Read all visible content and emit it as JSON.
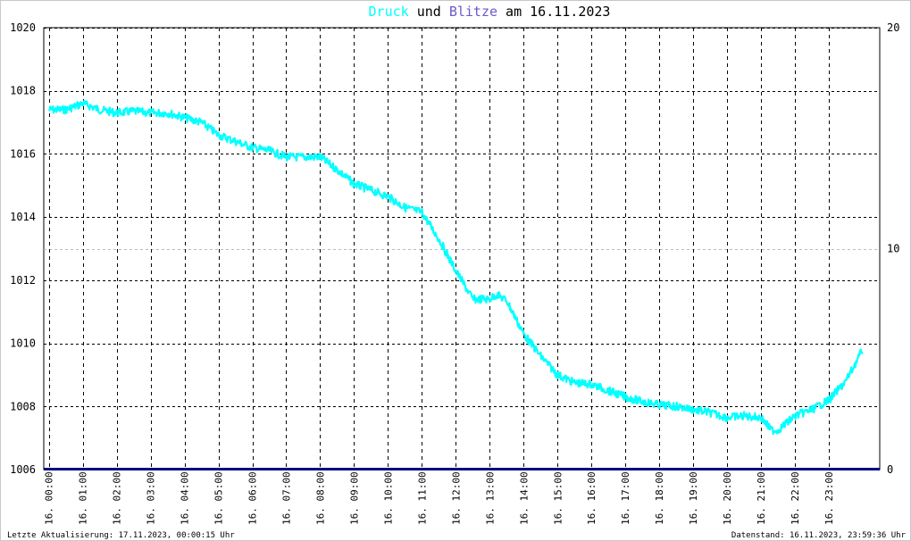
{
  "title": {
    "druck": "Druck",
    "und": " und ",
    "blitze": "Blitze",
    "rest": " am 16.11.2023"
  },
  "colors": {
    "druck": "#00ffff",
    "blitze": "#6a5acd",
    "baseline": "#000080",
    "grid": "#000000",
    "frame": "#c8c8c8"
  },
  "footer": {
    "left": "Letzte Aktualisierung: 17.11.2023, 00:00:15 Uhr",
    "right": "Datenstand: 16.11.2023, 23:59:36 Uhr"
  },
  "chart_data": {
    "type": "line",
    "x_tick_labels": [
      "16. 00:00",
      "16. 01:00",
      "16. 02:00",
      "16. 03:00",
      "16. 04:00",
      "16. 05:00",
      "16. 06:00",
      "16. 07:00",
      "16. 08:00",
      "16. 09:00",
      "16. 10:00",
      "16. 11:00",
      "16. 12:00",
      "16. 13:00",
      "16. 14:00",
      "16. 15:00",
      "16. 16:00",
      "16. 17:00",
      "16. 18:00",
      "16. 19:00",
      "16. 20:00",
      "16. 21:00",
      "16. 22:00",
      "16. 23:00"
    ],
    "y_left": {
      "ylim": [
        1006,
        1020
      ],
      "ticks": [
        1006,
        1008,
        1010,
        1012,
        1014,
        1016,
        1018,
        1020
      ]
    },
    "y_right": {
      "ylim": [
        0,
        20
      ],
      "ticks": [
        0,
        10,
        20
      ]
    },
    "xlim_hours": [
      -0.15,
      24.5
    ],
    "grid": true,
    "series": [
      {
        "name": "Druck",
        "axis": "left",
        "x_hours": [
          0,
          0.5,
          1.0,
          1.5,
          2.0,
          2.5,
          3.0,
          3.5,
          4.0,
          4.5,
          5.0,
          5.5,
          6.0,
          6.5,
          7.0,
          7.5,
          8.0,
          8.5,
          9.0,
          9.5,
          10.0,
          10.5,
          11.0,
          11.5,
          12.0,
          12.5,
          13.0,
          13.2,
          13.5,
          14.0,
          14.5,
          15.0,
          15.5,
          16.0,
          16.5,
          17.0,
          17.5,
          18.0,
          18.5,
          19.0,
          19.5,
          20.0,
          20.5,
          21.0,
          21.3,
          21.5,
          22.0,
          22.5,
          23.0,
          23.5,
          24.0
        ],
        "values": [
          1017.4,
          1017.4,
          1017.6,
          1017.4,
          1017.3,
          1017.35,
          1017.3,
          1017.3,
          1017.15,
          1017.0,
          1016.6,
          1016.4,
          1016.2,
          1016.1,
          1015.9,
          1015.9,
          1015.9,
          1015.5,
          1015.05,
          1014.85,
          1014.65,
          1014.3,
          1014.15,
          1013.3,
          1012.3,
          1011.4,
          1011.4,
          1011.55,
          1011.35,
          1010.3,
          1009.6,
          1009.0,
          1008.75,
          1008.7,
          1008.5,
          1008.3,
          1008.15,
          1008.05,
          1008.0,
          1007.9,
          1007.8,
          1007.65,
          1007.7,
          1007.65,
          1007.25,
          1007.25,
          1007.7,
          1007.9,
          1008.2,
          1008.8,
          1009.8
        ]
      },
      {
        "name": "Blitze",
        "axis": "right",
        "x_hours": [
          0,
          24.0
        ],
        "values": [
          0,
          0
        ]
      }
    ]
  }
}
